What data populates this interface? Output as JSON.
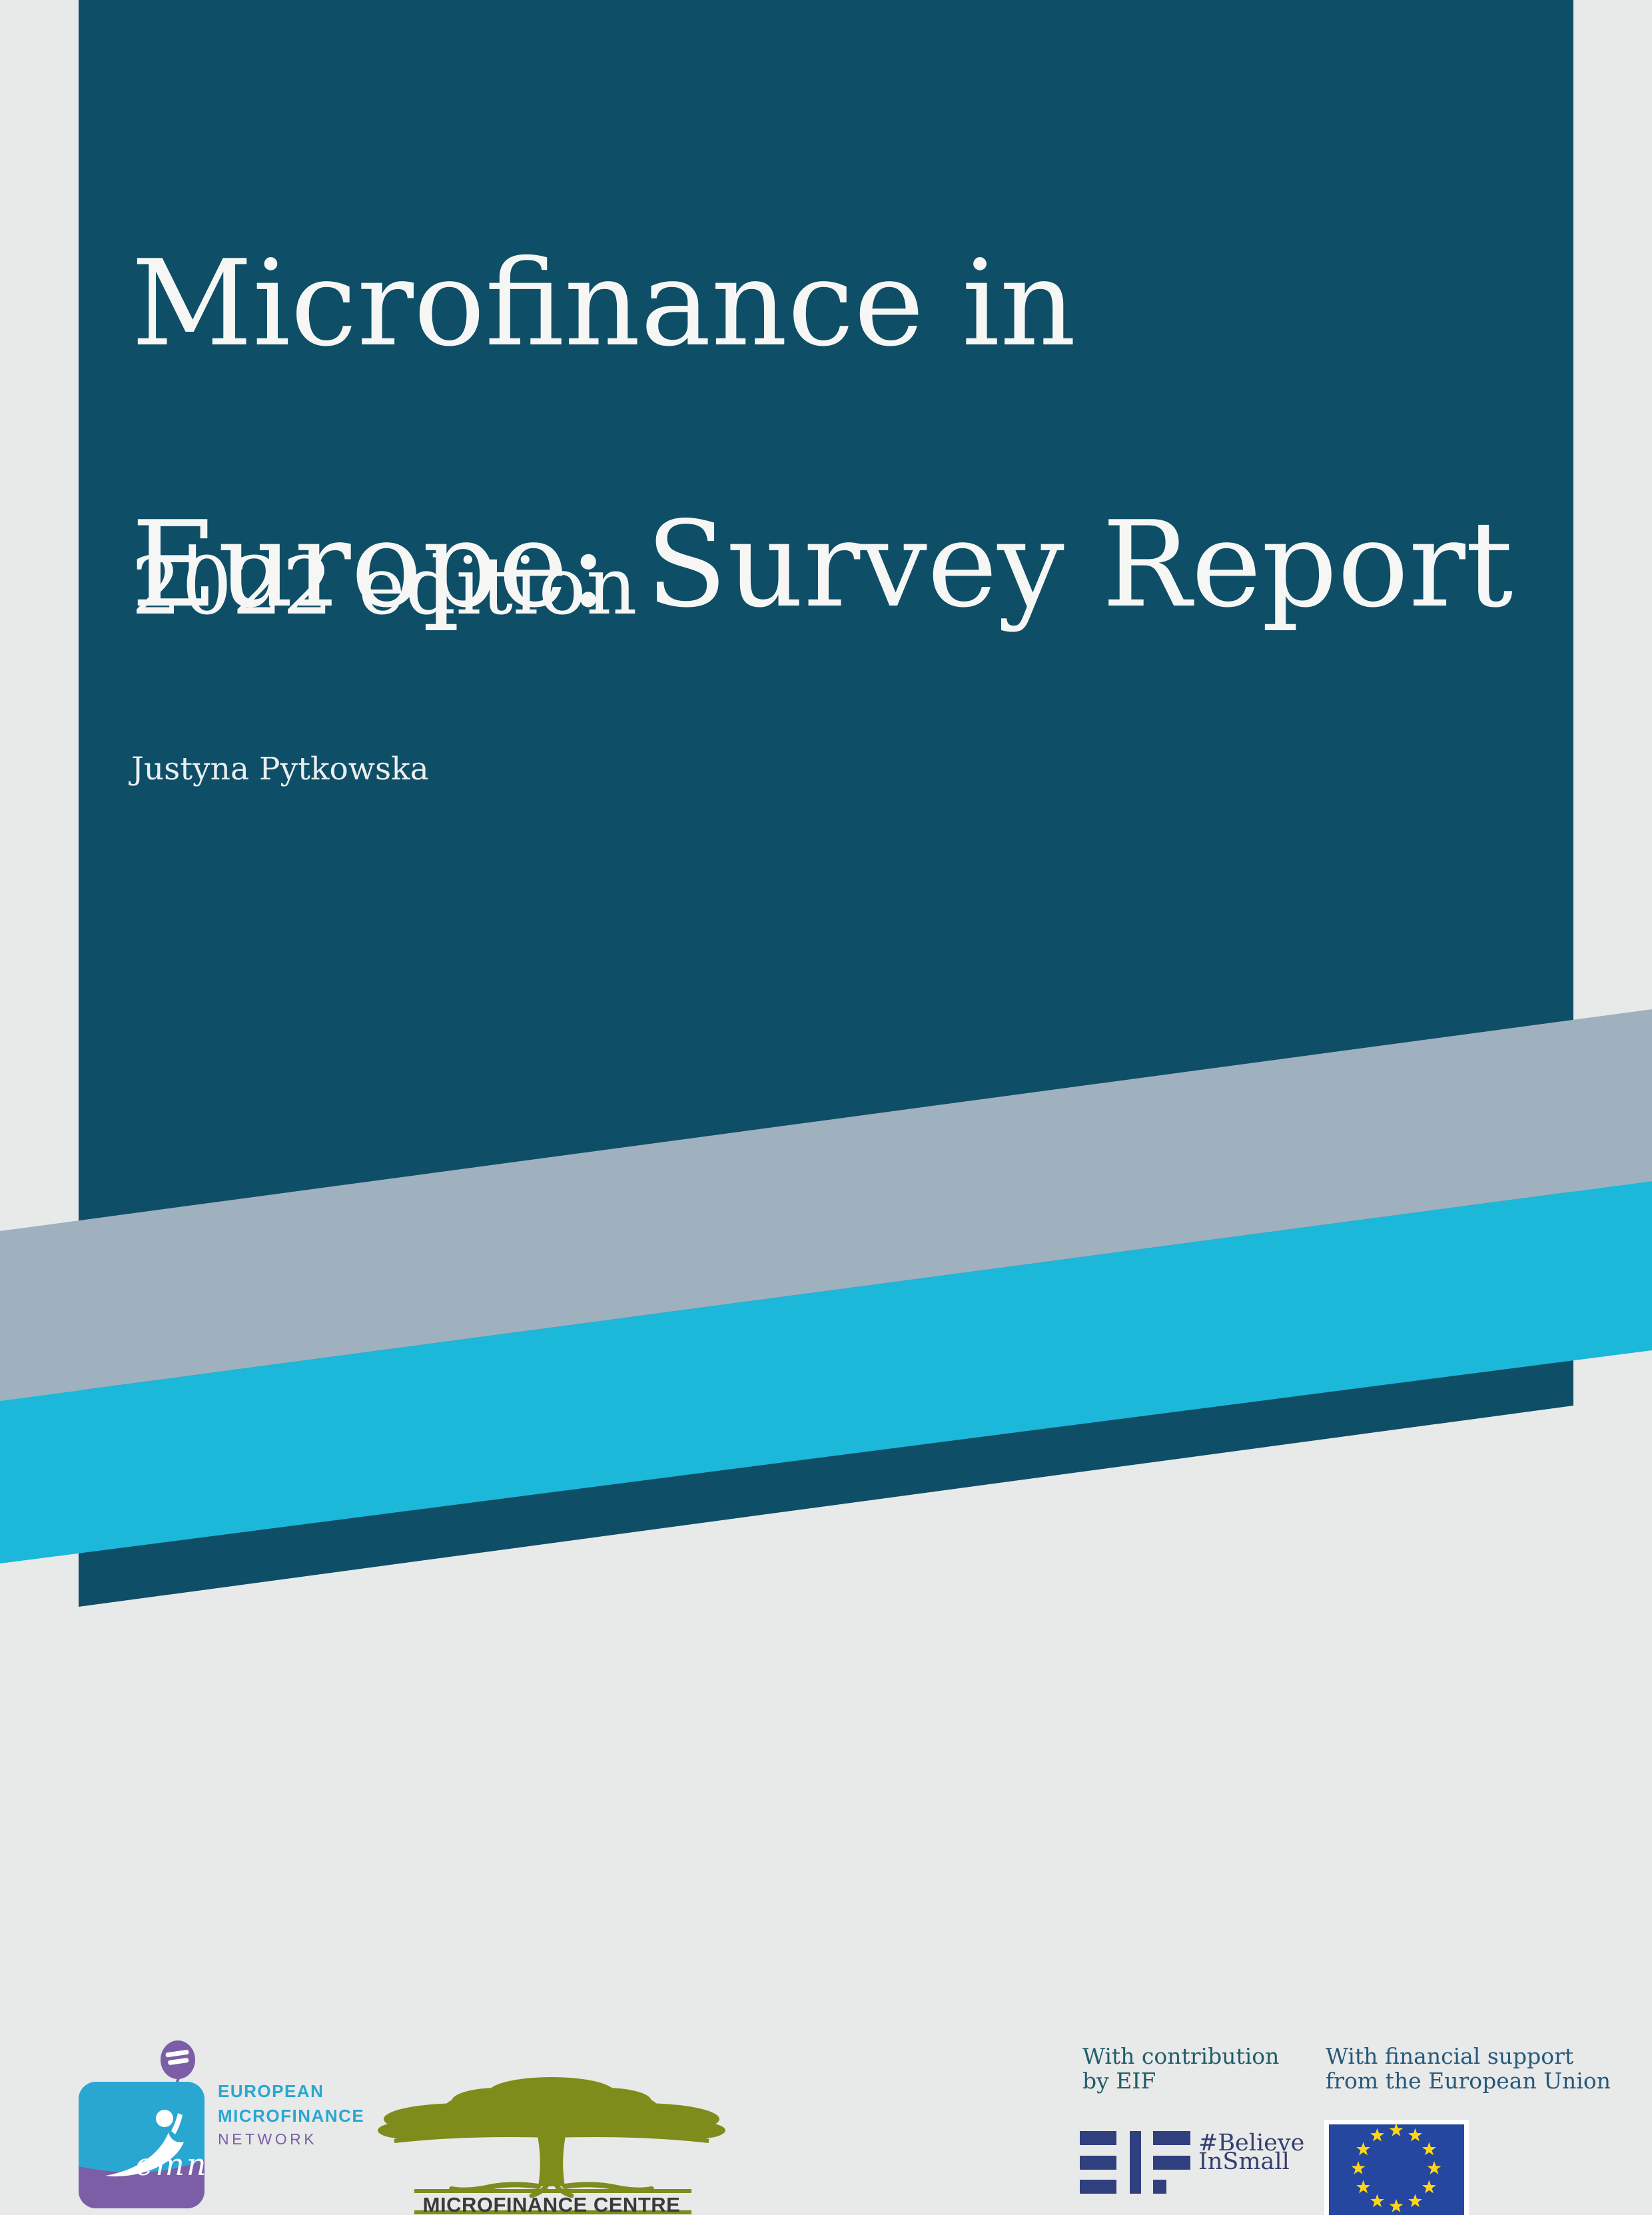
{
  "cover": {
    "title_line1": "Microfinance in",
    "title_line2": "Europe: Survey Report",
    "edition": "2022 edition",
    "author": "Justyna Pytkowska"
  },
  "footer": {
    "emn": {
      "word_line1": "EUROPEAN",
      "word_line2": "MICROFINANCE",
      "word_line3": "NETWORK",
      "script": "emn"
    },
    "mfc": {
      "label": "MICROFINANCE CENTRE"
    },
    "eif": {
      "contribution": "With contribution\nby EIF",
      "hashtag": "#Believe\nInSmall"
    },
    "eu": {
      "support": "With financial support\nfrom the European Union"
    }
  },
  "icons": {
    "emn_logo": "leaping-figure-with-balloon",
    "mfc_logo": "spreading-tree",
    "eif_logo": "eif-bars-monogram",
    "eu_flag": "eu-flag-circle-of-stars"
  },
  "colors": {
    "page_bg": "#e8e9e9",
    "teal": "#0e4e67",
    "band_gray": "#9fb0bf",
    "band_cyan": "#1bb8d9",
    "text_white": "#f6f7f5",
    "emn_cyan": "#2aa7d0",
    "emn_purple": "#7c5ea7",
    "mfc_olive": "#7e8c1c",
    "mfc_text": "#3a3a3a",
    "eif_navy": "#303f7e",
    "believe_navy": "#333f6f",
    "note_teal": "#215e69",
    "note_blue": "#26597a",
    "eu_blue": "#2547a0",
    "eu_yellow": "#ffd617"
  }
}
